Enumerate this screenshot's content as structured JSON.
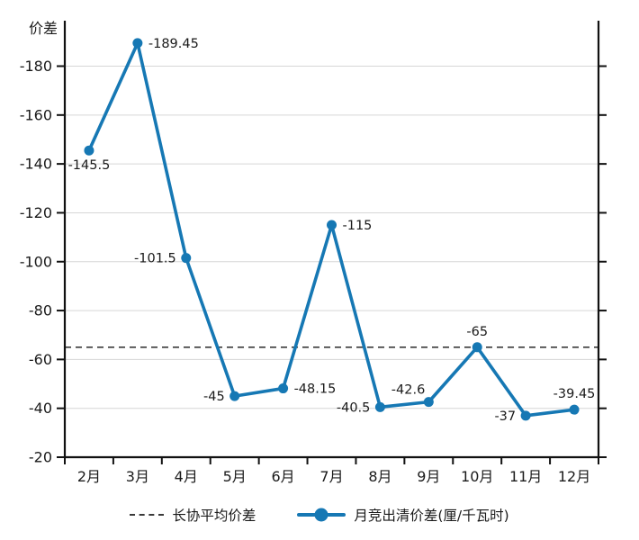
{
  "chart_data": {
    "type": "line",
    "title": "",
    "ylabel": "价差",
    "categories": [
      "2月",
      "3月",
      "4月",
      "5月",
      "6月",
      "7月",
      "8月",
      "9月",
      "10月",
      "11月",
      "12月"
    ],
    "series": [
      {
        "name": "月竞出清价差(厘/千瓦时)",
        "color": "#1678b4",
        "values": [
          -145.5,
          -189.45,
          -101.5,
          -45,
          -48.15,
          -115,
          -40.5,
          -42.6,
          -65,
          -37,
          -39.45
        ]
      }
    ],
    "reference_line": {
      "name": "长协平均价差",
      "value": -65,
      "style": "dashed",
      "color": "#3a3a3a"
    },
    "y_ticks": [
      -20,
      -40,
      -60,
      -80,
      -100,
      -120,
      -140,
      -160,
      -180
    ],
    "ylim": [
      -20,
      -198.6
    ],
    "y_axis_inverted": true,
    "grid": true,
    "grid_color": "#d6d6d6",
    "axis_color": "#111111",
    "text_color": "#1a1a1a",
    "legend_position": "bottom",
    "label_positions": [
      "below",
      "right",
      "left",
      "left",
      "right",
      "right",
      "left",
      "above-left",
      "above",
      "left",
      "above"
    ]
  }
}
